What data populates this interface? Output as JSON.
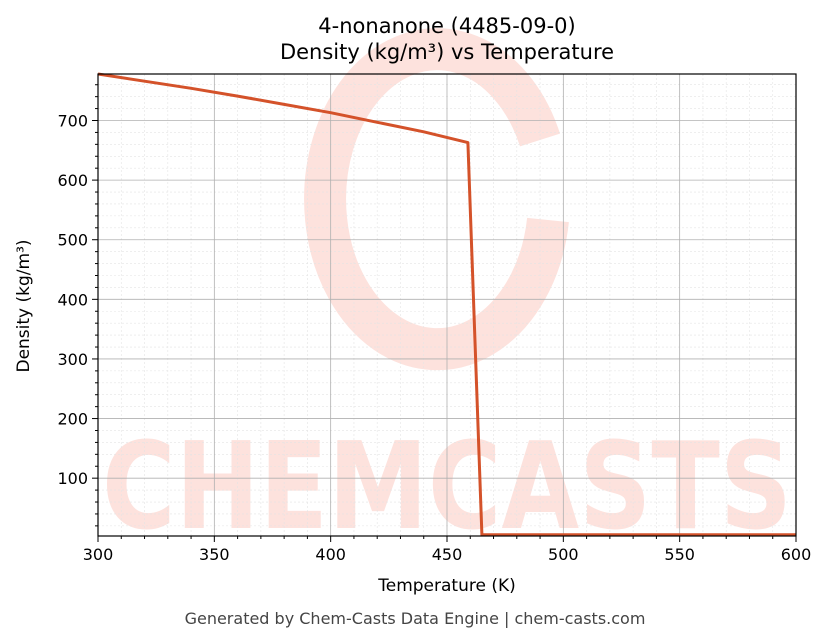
{
  "chart_data": {
    "type": "line",
    "title": "4-nonanone (4485-09-0)",
    "subtitle": "Density (kg/m³) vs Temperature",
    "xlabel": "Temperature (K)",
    "ylabel": "Density (kg/m³)",
    "xlim": [
      300,
      600
    ],
    "ylim": [
      3,
      778
    ],
    "xticks": [
      300,
      350,
      400,
      450,
      500,
      550,
      600
    ],
    "yticks": [
      100,
      200,
      300,
      400,
      500,
      600,
      700
    ],
    "grid": true,
    "line_color": "#d4522a",
    "series": [
      {
        "x": [
          300,
          320,
          340,
          360,
          380,
          400,
          420,
          440,
          459,
          465,
          470,
          500,
          550,
          600
        ],
        "values": [
          778,
          766,
          754,
          741,
          727,
          713,
          697,
          681,
          663,
          5,
          5,
          5,
          5,
          5
        ]
      }
    ]
  },
  "watermark": {
    "text": "CHEMCASTS",
    "color": "#fde2dd"
  },
  "footer": "Generated by Chem-Casts Data Engine | chem-casts.com"
}
